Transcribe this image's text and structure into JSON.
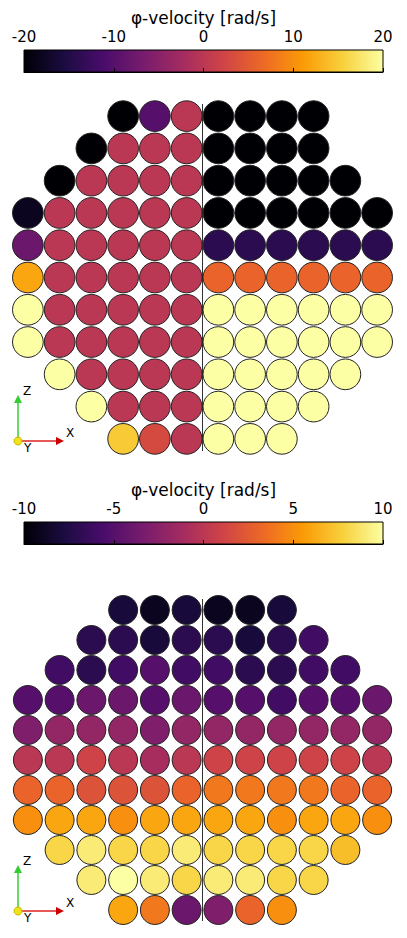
{
  "chart_data": [
    {
      "type": "heatmap",
      "colorbar": {
        "title": "φ-velocity [rad/s]",
        "range": [
          -20,
          20
        ],
        "ticks": [
          -20,
          -10,
          0,
          10,
          20
        ],
        "colors": [
          "#000004",
          "#1b0c41",
          "#4a0c6b",
          "#781c6d",
          "#a52c60",
          "#cf4446",
          "#ed6925",
          "#fb9b06",
          "#f7d13d",
          "#fcffa4"
        ]
      },
      "axes_labels": {
        "x": "X",
        "y": "Y",
        "z": "Z"
      },
      "cells": [
        [
          null,
          null,
          null,
          -20,
          -10,
          0,
          -20,
          -20,
          -20,
          -20,
          null,
          null
        ],
        [
          null,
          null,
          -20,
          0,
          0,
          0,
          -20,
          -20,
          -20,
          -20,
          null,
          null
        ],
        [
          null,
          -20,
          0,
          0,
          0,
          0,
          -20,
          -20,
          -20,
          -20,
          -20,
          null
        ],
        [
          -18,
          0,
          0,
          0,
          0,
          0,
          -20,
          -20,
          -20,
          -20,
          -20,
          -20
        ],
        [
          -8,
          0,
          0,
          0,
          0,
          0,
          -14,
          -14,
          -14,
          -14,
          -14,
          -14
        ],
        [
          12,
          0,
          0,
          0,
          0,
          0,
          6,
          6,
          6,
          6,
          6,
          6
        ],
        [
          20,
          0,
          0,
          0,
          0,
          0,
          20,
          20,
          20,
          20,
          20,
          20
        ],
        [
          20,
          0,
          0,
          0,
          0,
          0,
          20,
          20,
          20,
          20,
          20,
          20
        ],
        [
          null,
          20,
          0,
          0,
          0,
          0,
          20,
          20,
          20,
          20,
          20,
          null
        ],
        [
          null,
          null,
          20,
          0,
          0,
          0,
          20,
          20,
          20,
          20,
          null,
          null
        ],
        [
          null,
          null,
          null,
          15,
          3,
          0,
          20,
          20,
          20,
          null,
          null,
          null
        ]
      ]
    },
    {
      "type": "heatmap",
      "colorbar": {
        "title": "φ-velocity [rad/s]",
        "range": [
          -10,
          10
        ],
        "ticks": [
          -10,
          -5,
          0,
          5,
          10
        ],
        "colors": [
          "#000004",
          "#1b0c41",
          "#4a0c6b",
          "#781c6d",
          "#a52c60",
          "#cf4446",
          "#ed6925",
          "#fb9b06",
          "#f7d13d",
          "#fcffa4"
        ]
      },
      "axes_labels": {
        "x": "X",
        "y": "Y",
        "z": "Z"
      },
      "cells": [
        [
          null,
          null,
          null,
          -8,
          -9,
          -8,
          -9,
          -9,
          -8,
          null,
          null,
          null
        ],
        [
          null,
          null,
          -7,
          -7,
          -8,
          -7,
          -7,
          -8,
          -7,
          -6,
          null,
          null
        ],
        [
          null,
          -6,
          -7,
          -6,
          -5,
          -6,
          -6,
          -7,
          -7,
          -6,
          -6,
          null
        ],
        [
          -5,
          -5,
          -4,
          -4,
          -5,
          -4,
          -5,
          -5,
          -6,
          -5,
          -5,
          -4
        ],
        [
          -3,
          -2,
          -2,
          -2,
          -3,
          -2,
          -2,
          -2,
          -2,
          -2,
          -2,
          -2
        ],
        [
          0,
          0,
          1,
          0,
          -1,
          0,
          1,
          1,
          1,
          1,
          1,
          0
        ],
        [
          3,
          3,
          2,
          2,
          2,
          3,
          4,
          4,
          4,
          4,
          3,
          3
        ],
        [
          5,
          6,
          6,
          5,
          6,
          6,
          6,
          6,
          5,
          6,
          6,
          5
        ],
        [
          null,
          8,
          9,
          8,
          8,
          9,
          8,
          8,
          8,
          8,
          7,
          null
        ],
        [
          null,
          null,
          9,
          10,
          9,
          8,
          9,
          9,
          8,
          8,
          null,
          null
        ],
        [
          null,
          null,
          null,
          6,
          4,
          -4,
          -3,
          3,
          5,
          null,
          null,
          null
        ]
      ]
    }
  ]
}
